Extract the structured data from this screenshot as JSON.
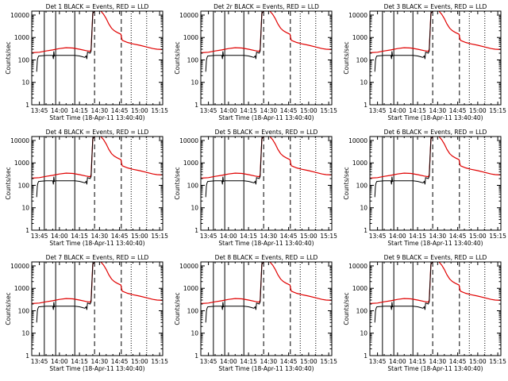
{
  "chart_data": {
    "type": "line",
    "date_label": "Start Time (18-Apr-11 13:40:40)",
    "y_label": "Counts/sec",
    "x_ticks": [
      "13:45",
      "14:00",
      "14:15",
      "14:30",
      "14:45",
      "15:00",
      "15:15"
    ],
    "x_tick_minutes": [
      0,
      15,
      30,
      45,
      60,
      75,
      90
    ],
    "x_range_minutes": [
      -5.7,
      92.3
    ],
    "y_ticks": [
      "1",
      "10",
      "100",
      "1000",
      "10000"
    ],
    "y_range": [
      1,
      15000
    ],
    "y_scale": "log",
    "series_legend": [
      {
        "name": "BLACK = Events",
        "color": "#000000"
      },
      {
        "name": "RED = LLD",
        "color": "#e00000"
      }
    ],
    "solid_lines_minutes": [
      3.7,
      12.2,
      26.5
    ],
    "dashed_lines_minutes": [
      41.3,
      61.3
    ],
    "dotted_lines_minutes": [
      68.7,
      80.3
    ],
    "panels": [
      {
        "title": "Det 1 BLACK = Events, RED = LLD",
        "detector": "1"
      },
      {
        "title": "Det 2r BLACK = Events, RED = LLD",
        "detector": "2r"
      },
      {
        "title": "Det 3 BLACK = Events, RED = LLD",
        "detector": "3"
      },
      {
        "title": "Det 4 BLACK = Events, RED = LLD",
        "detector": "4"
      },
      {
        "title": "Det 5 BLACK = Events, RED = LLD",
        "detector": "5"
      },
      {
        "title": "Det 6 BLACK = Events, RED = LLD",
        "detector": "6"
      },
      {
        "title": "Det 7 BLACK = Events, RED = LLD",
        "detector": "7"
      },
      {
        "title": "Det 8 BLACK = Events, RED = LLD",
        "detector": "8"
      },
      {
        "title": "Det 9 BLACK = Events, RED = LLD",
        "detector": "9"
      }
    ],
    "series": [
      {
        "name": "LLD",
        "color": "#e00000",
        "x": [
          -5.7,
          0,
          5,
          10,
          15,
          20,
          25,
          30,
          35,
          38,
          38.7,
          39.5,
          40,
          42,
          44,
          46,
          48,
          50,
          52,
          54,
          56,
          58,
          60,
          61,
          61.5,
          62,
          66,
          70,
          75,
          80,
          85,
          88,
          92
        ],
        "y": [
          210,
          220,
          250,
          280,
          320,
          350,
          340,
          300,
          260,
          240,
          300,
          3000,
          12000,
          16000,
          16000,
          15000,
          11000,
          7000,
          4000,
          2600,
          2000,
          1700,
          1500,
          1400,
          1000,
          750,
          600,
          520,
          450,
          380,
          320,
          300,
          290
        ]
      },
      {
        "name": "Events",
        "color": "#000000",
        "x": [
          -2,
          -1.5,
          -1,
          -0.5,
          0,
          5,
          10,
          10.5,
          10.8,
          11.2,
          12.2,
          20,
          26.5,
          30,
          32,
          34,
          35,
          35.5,
          36,
          38,
          38.7,
          39.5,
          40,
          42
        ],
        "y": [
          30,
          100,
          130,
          150,
          150,
          160,
          160,
          110,
          240,
          150,
          160,
          160,
          160,
          150,
          140,
          130,
          150,
          110,
          220,
          200,
          250,
          3000,
          12000,
          16000
        ]
      }
    ]
  }
}
